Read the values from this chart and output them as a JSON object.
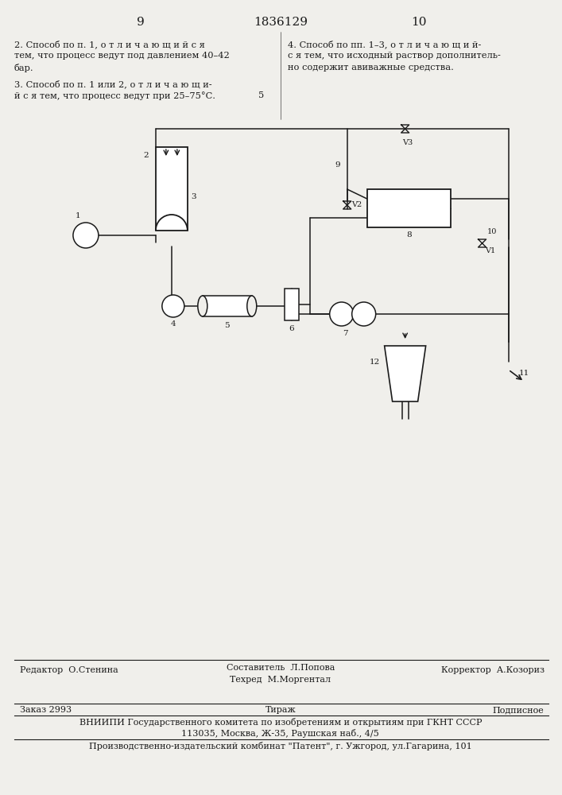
{
  "page_num_left": "9",
  "page_num_center": "1836129",
  "page_num_right": "10",
  "text_col1_line1": "2. Способ по п. 1, о т л и ч а ю щ и й с я",
  "text_col1_line2": "тем, что процесс ведут под давлением 40–42",
  "text_col1_line3": "бар.",
  "text_col2_line1": "4. Способ по пп. 1–3, о т л и ч а ю щ и й-",
  "text_col2_line2": "с я тем, что исходный раствор дополнитель-",
  "text_col2_line3": "но содержит авиважные средства.",
  "text_col1b_line1": "3. Способ по п. 1 или 2, о т л и ч а ю щ и-",
  "text_col1b_line2": "й с я тем, что процесс ведут при 25–75°С.",
  "text_col1b_line3": "5",
  "footer_editor": "Редактор  О.Стенина",
  "footer_composer": "Составитель  Л.Попова",
  "footer_corrector": "Корректор  А.Козориз",
  "footer_techred": "Техред  М.Моргентал",
  "footer_order": "Заказ 2993",
  "footer_tirazh": "Тираж",
  "footer_podpisnoe": "Подписное",
  "footer_vniipи": "ВНИИПИ Государственного комитета по изобретениям и открытиям при ГКНТ СССР",
  "footer_address": "113035, Москва, Ж-35, Раушская наб., 4/5",
  "footer_factory": "Производственно-издательский комбинат \"Патент\", г. Ужгород, ул.Гагарина, 101",
  "bg_color": "#f0efeb",
  "text_color": "#1a1a1a",
  "line_color": "#1a1a1a"
}
